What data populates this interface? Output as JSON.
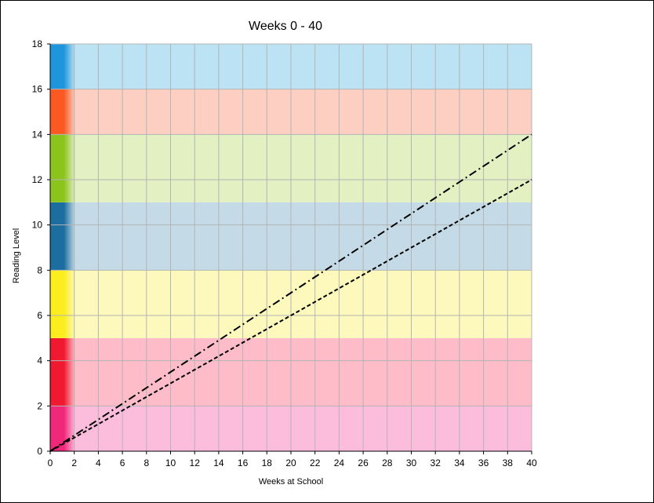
{
  "chart_data": {
    "type": "line",
    "title": "Weeks 0 - 40",
    "xlabel": "Weeks at School",
    "ylabel": "Reading Level",
    "xlim": [
      0,
      40
    ],
    "ylim": [
      0,
      18
    ],
    "x_ticks": [
      0,
      2,
      4,
      6,
      8,
      10,
      12,
      14,
      16,
      18,
      20,
      22,
      24,
      26,
      28,
      30,
      32,
      34,
      36,
      38,
      40
    ],
    "y_ticks": [
      0,
      2,
      4,
      6,
      8,
      10,
      12,
      14,
      16,
      18
    ],
    "grid": true,
    "bands": [
      {
        "from": 0,
        "to": 2,
        "color": "#fcbcdc",
        "edge": "#f0287a"
      },
      {
        "from": 2,
        "to": 5,
        "color": "#fdbcc8",
        "edge": "#f01a30"
      },
      {
        "from": 5,
        "to": 8,
        "color": "#fdf9bc",
        "edge": "#fcee1e"
      },
      {
        "from": 8,
        "to": 11,
        "color": "#c4dbe7",
        "edge": "#1c6ea0"
      },
      {
        "from": 11,
        "to": 14,
        "color": "#e2f0c2",
        "edge": "#8cc41e"
      },
      {
        "from": 14,
        "to": 16,
        "color": "#fdcfc2",
        "edge": "#fa5a22"
      },
      {
        "from": 16,
        "to": 18,
        "color": "#bce3f3",
        "edge": "#1e96dc"
      }
    ],
    "series": [
      {
        "style": "dash-dot",
        "color": "#000000",
        "x": [
          0,
          40
        ],
        "y": [
          0,
          14
        ]
      },
      {
        "style": "dashed",
        "color": "#000000",
        "x": [
          0,
          40
        ],
        "y": [
          0,
          12
        ]
      }
    ]
  }
}
